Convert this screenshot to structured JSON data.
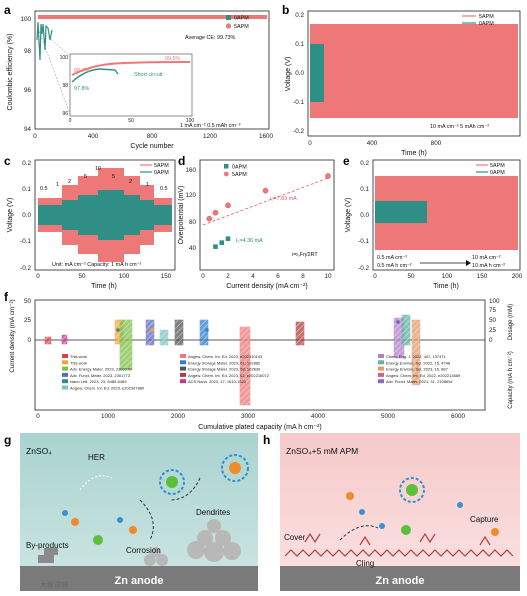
{
  "colors": {
    "apm": "#ee7777",
    "zero": "#2f8f86",
    "fit": "#e06060"
  },
  "panel_letters": {
    "a": "a",
    "b": "b",
    "c": "c",
    "d": "d",
    "e": "e",
    "f": "f",
    "g": "g",
    "h": "h"
  },
  "a": {
    "ylabel": "Coulombic efficiency (%)",
    "xlabel": "Cycle number",
    "yticks": [
      "94",
      "96",
      "98",
      "100"
    ],
    "xticks": [
      "0",
      "400",
      "800",
      "1200",
      "1600"
    ],
    "legend": [
      "0APM",
      "5APM"
    ],
    "avg": "Average CE: 99.73%",
    "inset": {
      "v1": "99.5%",
      "v2": "98.7%",
      "v3": "97.8%",
      "sc": "Short circuit",
      "yticks": [
        "96",
        "98",
        "100"
      ],
      "xticks": [
        "0",
        "50",
        "100"
      ]
    },
    "cond": "1 mA cm⁻² 0.5 mAh cm⁻²"
  },
  "b": {
    "ylabel": "Voltage (V)",
    "xlabel": "Time (h)",
    "yticks": [
      "-0.2",
      "-0.1",
      "0.0",
      "0.1",
      "0.2"
    ],
    "xticks": [
      "0",
      "400",
      "800"
    ],
    "legend": [
      "5APM",
      "0APM"
    ],
    "cond": "10 mA cm⁻² 5 mAh cm⁻²"
  },
  "c": {
    "ylabel": "Voltage (V)",
    "xlabel": "Time (h)",
    "yticks": [
      "-0.2",
      "-0.1",
      "0.0",
      "0.1",
      "0.2"
    ],
    "xticks": [
      "0",
      "50",
      "100",
      "150"
    ],
    "legend": [
      "5APM",
      "0APM"
    ],
    "rates": [
      "0.5",
      "1",
      "2",
      "5",
      "10",
      "5",
      "2",
      "1",
      "0.5"
    ],
    "unit": "Unit: mA cm⁻² Capacity: 1 mA h cm⁻²"
  },
  "d": {
    "ylabel": "Overpotential (mV)",
    "xlabel": "Current density (mA cm⁻²)",
    "yticks": [
      "40",
      "80",
      "120",
      "160"
    ],
    "xticks": [
      "0",
      "2",
      "4",
      "6",
      "8",
      "10"
    ],
    "legend": [
      "0APM",
      "5APM"
    ],
    "i5": "i₀=7.83 mA",
    "i0": "i₀=4.36 mA",
    "eq": "i=i₀Fη/2RT"
  },
  "e": {
    "ylabel": "Voltage (V)",
    "xlabel": "Time (h)",
    "yticks": [
      "-0.2",
      "-0.1",
      "0.0",
      "0.1",
      "0.2"
    ],
    "xticks": [
      "0",
      "50",
      "100",
      "150",
      "200"
    ],
    "legend": [
      "5APM",
      "0APM"
    ],
    "c1": "0.5 mA cm⁻²",
    "c2": "0.5 mA h cm⁻²",
    "c3": "10 mA cm⁻²",
    "c4": "10 mA h cm⁻²"
  },
  "f": {
    "ylabel_left": "Current density (mA cm⁻²)",
    "ylabel_right_cap": "Capacity (mA h cm⁻²)",
    "ylabel_right_dose": "Dosage (mM)",
    "xlabel": "Cumulative plated capacity (mA h cm⁻²)",
    "xticks": [
      "0",
      "1000",
      "2000",
      "3000",
      "4000",
      "5000",
      "6000"
    ],
    "yl": [
      "0",
      "25",
      "50"
    ],
    "yr": [
      "0",
      "25",
      "50",
      "75",
      "100"
    ],
    "legend_col1": [
      "This work",
      "This work",
      "Adv. Energy Mater. 2023, 2300770",
      "Adv. Funct. Mater. 2023, 2301773",
      "Nano Lett. 2023, 23, 6485-6489",
      "Angew. Chem. Int. Ed. 2023, e202307880"
    ],
    "legend_col2": [
      "Angew. Chem. Int. Ed. 2023, e202310143",
      "Energy Storage Mater. 2023, 61, 102882",
      "Energy Storage Mater. 2023, 58, 102830",
      "Angew. Chem. Int. Ed. 2023, 62, e202216072",
      "ACS Nano. 2023, 17, 1610-1621"
    ],
    "legend_col3": [
      "Chem. Eng. J. 2022, 447, 137471",
      "Energy Environ. Sci. 2022, 15, 4748",
      "Energy Environ. Sci. 2023, 16, 887",
      "Angew. Chem. Int. Ed. 2022, e202213689",
      "Adv. Funct. Mater. 2021, 31, 2108654"
    ]
  },
  "g": {
    "title": "ZnSO₄",
    "her": "HER",
    "byproducts": "By-products",
    "corrosion": "Corrosion",
    "dendrites": "Dendrites",
    "anode": "Zn anode",
    "watermark": "大叔说锌"
  },
  "h": {
    "title": "ZnSO₄+5 mM APM",
    "capture": "Capture",
    "cover": "Cover",
    "cling": "Cling",
    "anode": "Zn anode"
  }
}
